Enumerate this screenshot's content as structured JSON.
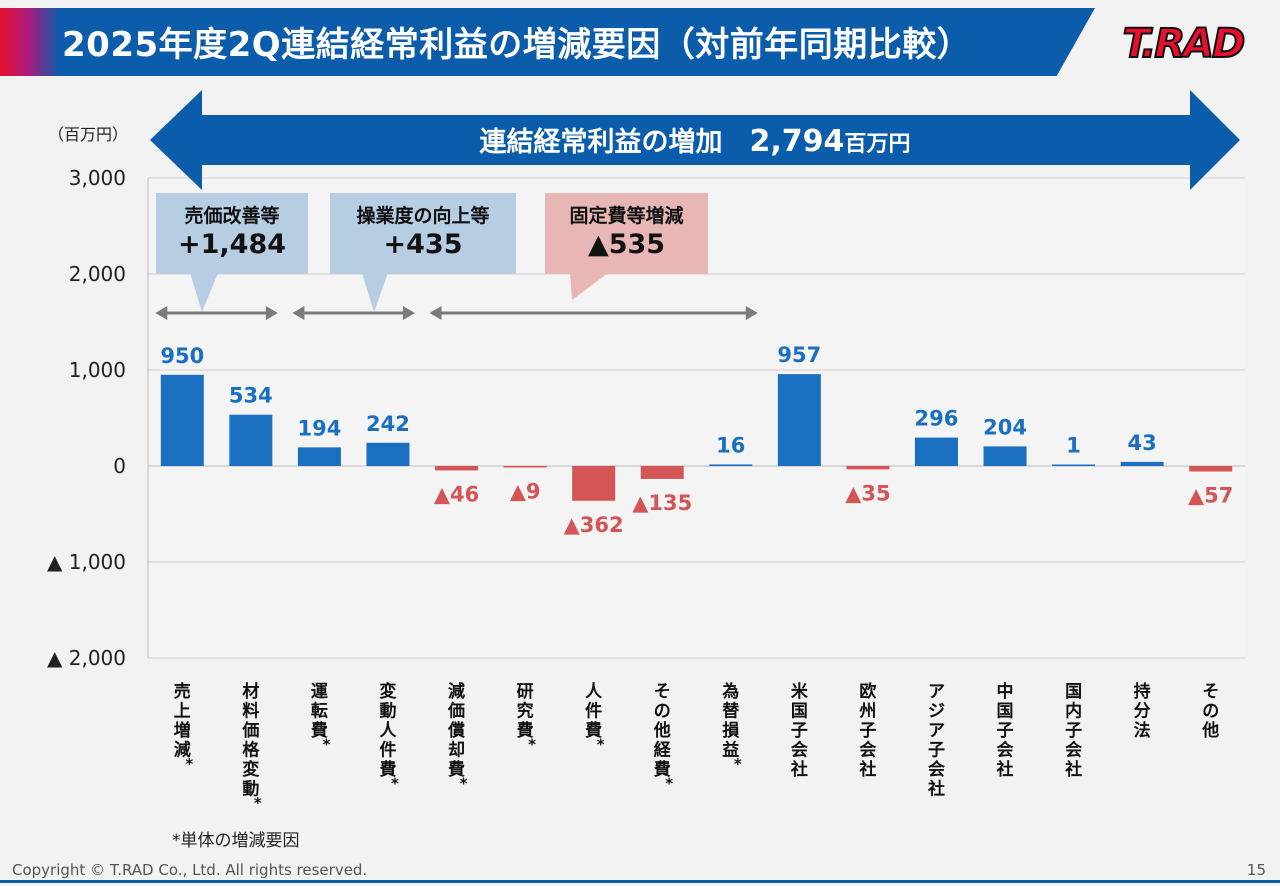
{
  "header": {
    "title": "2025年度2Q連結経常利益の増減要因（対前年同期比較）",
    "logo_text": "T.RAD"
  },
  "banner": {
    "label": "連結経常利益の増加",
    "value": "2,794",
    "unit": "百万円"
  },
  "callouts": [
    {
      "title": "売価改善等",
      "value": "+1,484",
      "kind": "positive"
    },
    {
      "title": "操業度の向上等",
      "value": "+435",
      "kind": "positive"
    },
    {
      "title": "固定費等増減",
      "value": "▲535",
      "kind": "negative"
    }
  ],
  "chart_data": {
    "type": "bar",
    "unit_label": "（百万円）",
    "ylim": [
      -2000,
      3000
    ],
    "yticks": [
      3000,
      2000,
      1000,
      0,
      -1000,
      -2000
    ],
    "ytick_labels": [
      "3,000",
      "2,000",
      "1,000",
      "0",
      "▲ 1,000",
      "▲ 2,000"
    ],
    "grid": true,
    "categories": [
      "売上増減*",
      "材料価格変動*",
      "運転費*",
      "変動人件費*",
      "減価償却費*",
      "研究費*",
      "人件費*",
      "その他経費*",
      "為替損益*",
      "米国子会社",
      "欧州子会社",
      "アジア子会社",
      "中国子会社",
      "国内子会社",
      "持分法",
      "その他"
    ],
    "values": [
      950,
      534,
      194,
      242,
      -46,
      -9,
      -362,
      -135,
      16,
      957,
      -35,
      296,
      204,
      1,
      43,
      -57
    ],
    "value_labels": [
      "950",
      "534",
      "194",
      "242",
      "▲46",
      "▲9",
      "▲362",
      "▲135",
      "16",
      "957",
      "▲35",
      "296",
      "204",
      "1",
      "43",
      "▲57"
    ],
    "group_ranges": [
      [
        0,
        1
      ],
      [
        2,
        3
      ],
      [
        4,
        8
      ]
    ],
    "colors": {
      "positive": "#1b6fc0",
      "negative": "#d45555"
    }
  },
  "footnote": "*単体の増減要因",
  "footer": {
    "copyright": "Copyright © T.RAD Co., Ltd. All rights reserved.",
    "page_number": "15"
  },
  "colors": {
    "header_blue": "#0b5cab",
    "callout_blue": "#b7cde3",
    "callout_pink": "#e9b6b6",
    "positive_bar": "#1b6fc0",
    "negative_bar": "#d45555"
  }
}
